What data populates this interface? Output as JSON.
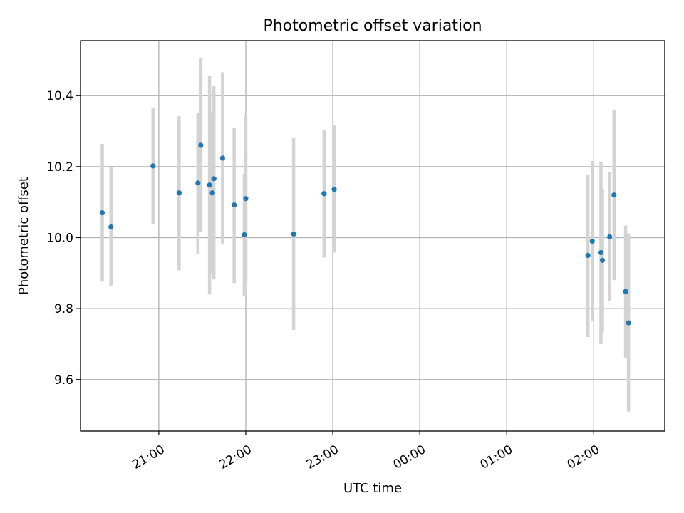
{
  "chart_data": {
    "type": "scatter",
    "title": "Photometric offset variation",
    "xlabel": "UTC time",
    "ylabel": "Photometric offset",
    "x_is_time": true,
    "xlim": [
      "20:06",
      "02:49"
    ],
    "ylim": [
      9.455,
      10.555
    ],
    "x_ticks": [
      {
        "time": "21:00",
        "label": "21:00"
      },
      {
        "time": "22:00",
        "label": "22:00"
      },
      {
        "time": "23:00",
        "label": "23:00"
      },
      {
        "time": "00:00",
        "label": "00:00"
      },
      {
        "time": "01:00",
        "label": "01:00"
      },
      {
        "time": "02:00",
        "label": "02:00"
      }
    ],
    "y_ticks": [
      {
        "value": 9.6,
        "label": "9.6"
      },
      {
        "value": 9.8,
        "label": "9.8"
      },
      {
        "value": 10.0,
        "label": "10.0"
      },
      {
        "value": 10.2,
        "label": "10.2"
      },
      {
        "value": 10.4,
        "label": "10.4"
      }
    ],
    "grid": true,
    "marker_color": "#1f77b4",
    "errorbar_color": "#d3d3d3",
    "points": [
      {
        "x": "20:21",
        "y": 10.07,
        "ylow": 9.876,
        "yhigh": 10.264
      },
      {
        "x": "20:27",
        "y": 10.03,
        "ylow": 9.864,
        "yhigh": 10.2
      },
      {
        "x": "20:56",
        "y": 10.202,
        "ylow": 10.038,
        "yhigh": 10.364
      },
      {
        "x": "21:14",
        "y": 10.126,
        "ylow": 9.908,
        "yhigh": 10.342
      },
      {
        "x": "21:27",
        "y": 10.154,
        "ylow": 9.954,
        "yhigh": 10.352
      },
      {
        "x": "21:29",
        "y": 10.26,
        "ylow": 10.016,
        "yhigh": 10.506
      },
      {
        "x": "21:35",
        "y": 10.148,
        "ylow": 9.84,
        "yhigh": 10.456
      },
      {
        "x": "21:37",
        "y": 10.126,
        "ylow": 9.898,
        "yhigh": 10.352
      },
      {
        "x": "21:38",
        "y": 10.166,
        "ylow": 9.882,
        "yhigh": 10.428
      },
      {
        "x": "21:44",
        "y": 10.224,
        "ylow": 9.982,
        "yhigh": 10.466
      },
      {
        "x": "21:52",
        "y": 10.092,
        "ylow": 9.872,
        "yhigh": 10.31
      },
      {
        "x": "21:59",
        "y": 10.008,
        "ylow": 9.834,
        "yhigh": 10.18
      },
      {
        "x": "22:00",
        "y": 10.11,
        "ylow": 9.876,
        "yhigh": 10.346
      },
      {
        "x": "22:33",
        "y": 10.01,
        "ylow": 9.74,
        "yhigh": 10.28
      },
      {
        "x": "22:54",
        "y": 10.124,
        "ylow": 9.944,
        "yhigh": 10.304
      },
      {
        "x": "23:01",
        "y": 10.136,
        "ylow": 9.958,
        "yhigh": 10.316
      },
      {
        "x": "01:56",
        "y": 9.95,
        "ylow": 9.72,
        "yhigh": 10.178
      },
      {
        "x": "01:59",
        "y": 9.99,
        "ylow": 9.764,
        "yhigh": 10.216
      },
      {
        "x": "02:05",
        "y": 9.958,
        "ylow": 9.7,
        "yhigh": 10.214
      },
      {
        "x": "02:06",
        "y": 9.936,
        "ylow": 9.734,
        "yhigh": 10.138
      },
      {
        "x": "02:11",
        "y": 10.002,
        "ylow": 9.822,
        "yhigh": 10.184
      },
      {
        "x": "02:14",
        "y": 10.12,
        "ylow": 9.88,
        "yhigh": 10.36
      },
      {
        "x": "02:22",
        "y": 9.848,
        "ylow": 9.662,
        "yhigh": 10.034
      },
      {
        "x": "02:24",
        "y": 9.76,
        "ylow": 9.51,
        "yhigh": 10.012
      }
    ]
  }
}
